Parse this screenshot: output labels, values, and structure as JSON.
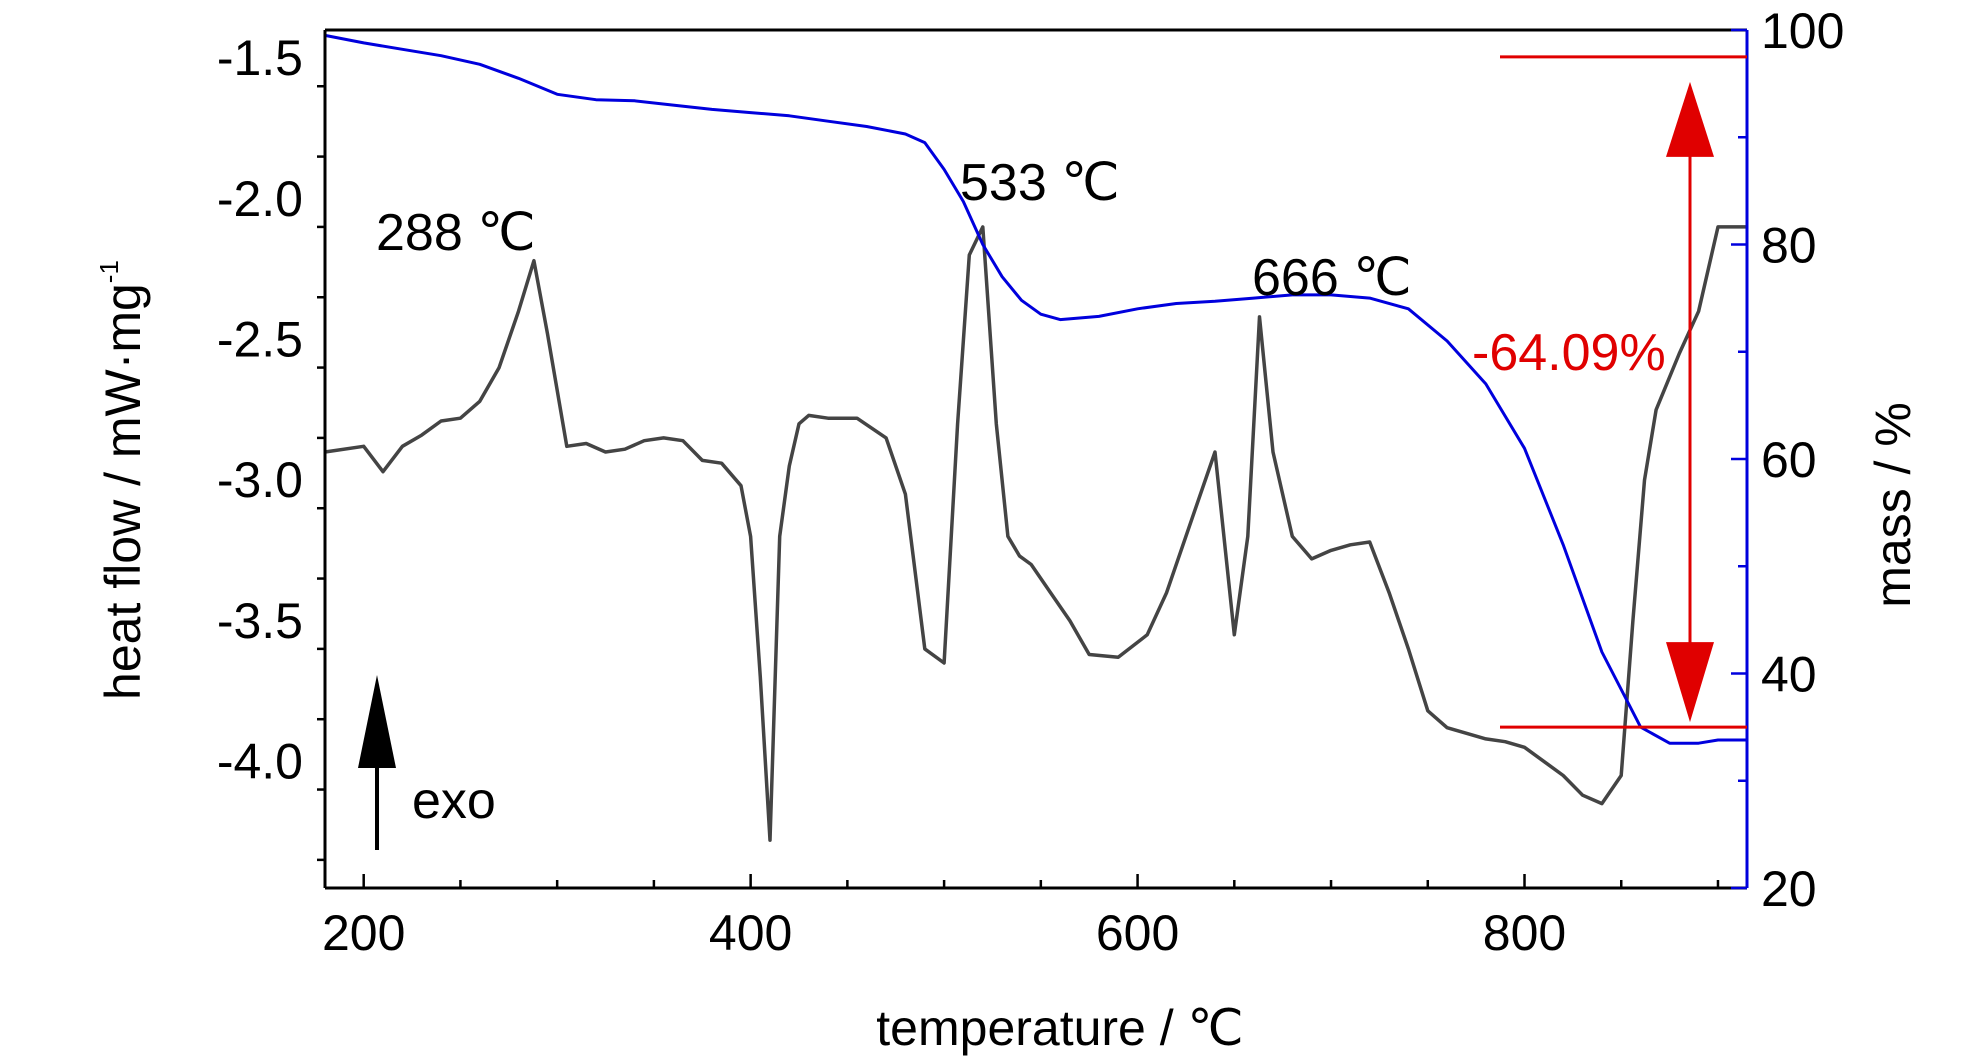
{
  "chart_data": {
    "type": "line",
    "xlabel": "temperature / ℃",
    "ylabel_left": "heat flow / mW·mg",
    "ylabel_left_sup": "-1",
    "ylabel_right": "mass / %",
    "xlim": [
      180,
      915
    ],
    "ylim_left": [
      -4.45,
      -1.4
    ],
    "ylim_right": [
      20,
      100
    ],
    "x_ticks": [
      200,
      400,
      600,
      800
    ],
    "y_left_ticks": [
      -1.5,
      -2.0,
      -2.5,
      -3.0,
      -3.5,
      -4.0
    ],
    "y_left_tick_labels": [
      "-1.5",
      "-2.0",
      "-2.5",
      "-3.0",
      "-3.5",
      "-4.0"
    ],
    "y_right_ticks": [
      20,
      40,
      60,
      80,
      100
    ],
    "colors": {
      "dsc": "#444444",
      "tg": "#0000dd",
      "annotation": "#e00000",
      "axis_right": "#0000dd"
    },
    "series": [
      {
        "axis": "left",
        "x": [
          180,
          200,
          210,
          220,
          230,
          240,
          250,
          260,
          270,
          280,
          288,
          295,
          305,
          315,
          325,
          335,
          345,
          355,
          365,
          375,
          385,
          395,
          400,
          405,
          410,
          415,
          420,
          425,
          430,
          440,
          455,
          470,
          480,
          490,
          500,
          507,
          513,
          520,
          527,
          533,
          539,
          545,
          555,
          565,
          575,
          590,
          605,
          615,
          630,
          640,
          650,
          657,
          663,
          670,
          680,
          690,
          700,
          710,
          720,
          730,
          740,
          750,
          760,
          770,
          780,
          790,
          800,
          810,
          820,
          830,
          840,
          850,
          856,
          862,
          868,
          880,
          890,
          900,
          915
        ],
        "y": [
          -2.9,
          -2.88,
          -2.97,
          -2.88,
          -2.84,
          -2.79,
          -2.78,
          -2.72,
          -2.6,
          -2.4,
          -2.22,
          -2.48,
          -2.88,
          -2.87,
          -2.9,
          -2.89,
          -2.86,
          -2.85,
          -2.86,
          -2.93,
          -2.94,
          -3.02,
          -3.2,
          -3.7,
          -4.28,
          -3.2,
          -2.95,
          -2.8,
          -2.77,
          -2.78,
          -2.78,
          -2.85,
          -3.05,
          -3.6,
          -3.65,
          -2.8,
          -2.2,
          -2.1,
          -2.8,
          -3.2,
          -3.27,
          -3.3,
          -3.4,
          -3.5,
          -3.62,
          -3.63,
          -3.55,
          -3.4,
          -3.1,
          -2.9,
          -3.55,
          -3.2,
          -2.42,
          -2.9,
          -3.2,
          -3.28,
          -3.25,
          -3.23,
          -3.22,
          -3.4,
          -3.6,
          -3.82,
          -3.88,
          -3.9,
          -3.92,
          -3.93,
          -3.95,
          -4.0,
          -4.05,
          -4.12,
          -4.15,
          -4.05,
          -3.5,
          -3.0,
          -2.75,
          -2.55,
          -2.4,
          -2.1,
          -2.1
        ]
      },
      {
        "axis": "right",
        "x": [
          180,
          200,
          220,
          240,
          260,
          280,
          300,
          320,
          340,
          360,
          380,
          400,
          420,
          440,
          460,
          480,
          490,
          500,
          510,
          520,
          530,
          540,
          550,
          560,
          580,
          600,
          620,
          640,
          660,
          680,
          700,
          720,
          740,
          760,
          780,
          800,
          820,
          840,
          860,
          875,
          890,
          900,
          915
        ],
        "y": [
          99.5,
          98.8,
          98.2,
          97.6,
          96.8,
          95.5,
          94.0,
          93.5,
          93.4,
          93.0,
          92.6,
          92.3,
          92.0,
          91.5,
          91.0,
          90.3,
          89.5,
          87.0,
          84.0,
          80.0,
          77.0,
          74.8,
          73.5,
          73.0,
          73.3,
          74.0,
          74.5,
          74.7,
          75.0,
          75.3,
          75.3,
          75.0,
          74.0,
          71.0,
          67.0,
          61.0,
          52.0,
          42.0,
          35.0,
          33.5,
          33.5,
          33.8,
          33.8
        ]
      }
    ],
    "annotations": {
      "peak_288": "288 ℃",
      "peak_533": "533 ℃",
      "peak_666": "666 ℃",
      "mass_loss": "-64.09%",
      "exo": "exo",
      "mass_loss_line_top": 97.5,
      "mass_loss_line_bottom": 35.0
    }
  }
}
